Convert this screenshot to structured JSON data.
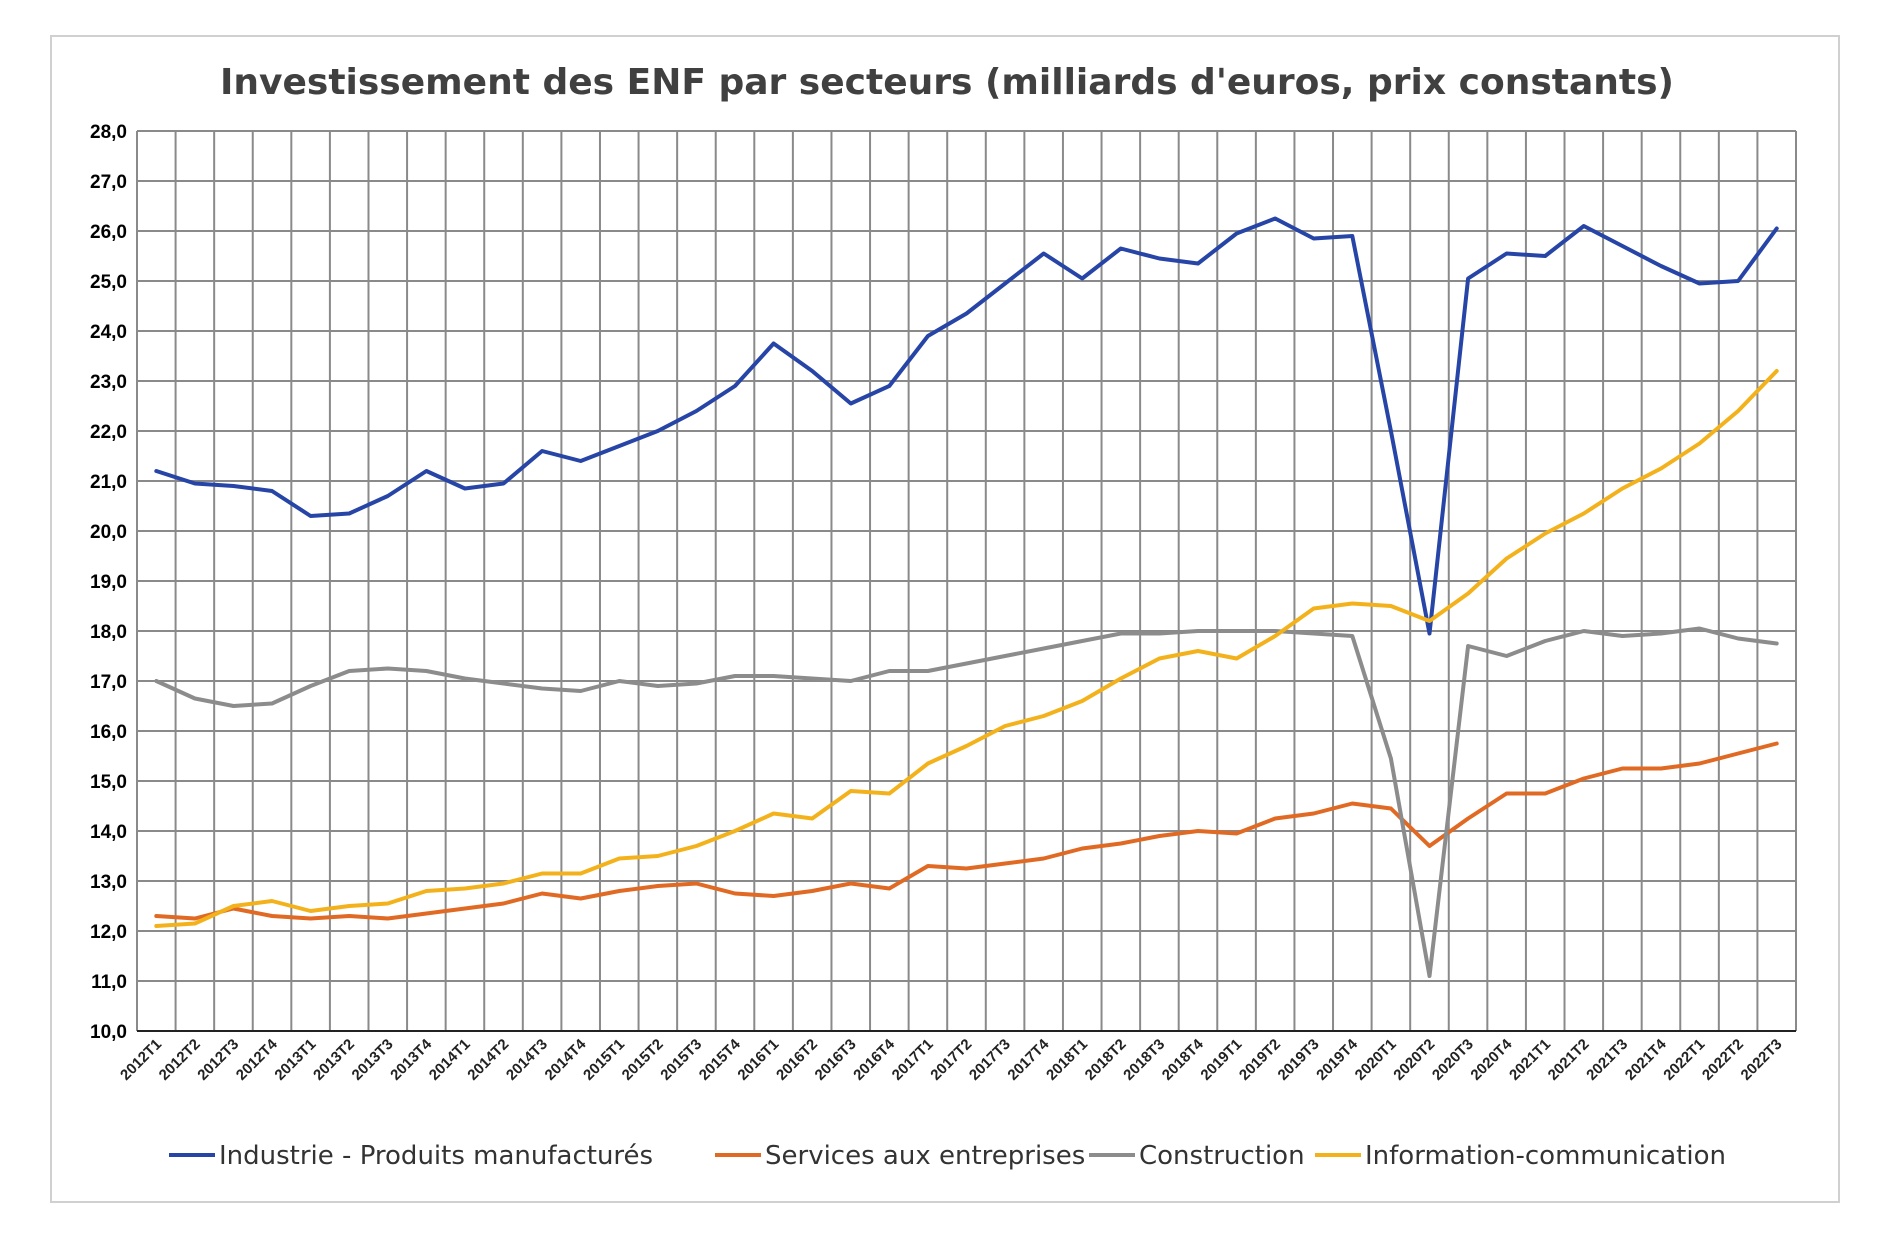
{
  "chart_data": {
    "type": "line",
    "title": "Investissement des ENF par secteurs (milliards d'euros, prix constants)",
    "xlabel": "",
    "ylabel": "",
    "ylim": [
      10,
      28
    ],
    "grid": true,
    "legend_position": "bottom",
    "y_ticks": [
      "10,0",
      "11,0",
      "12,0",
      "13,0",
      "14,0",
      "15,0",
      "16,0",
      "17,0",
      "18,0",
      "19,0",
      "20,0",
      "21,0",
      "22,0",
      "23,0",
      "24,0",
      "25,0",
      "26,0",
      "27,0",
      "28,0"
    ],
    "categories": [
      "2012T1",
      "2012T2",
      "2012T3",
      "2012T4",
      "2013T1",
      "2013T2",
      "2013T3",
      "2013T4",
      "2014T1",
      "2014T2",
      "2014T3",
      "2014T4",
      "2015T1",
      "2015T2",
      "2015T3",
      "2015T4",
      "2016T1",
      "2016T2",
      "2016T3",
      "2016T4",
      "2017T1",
      "2017T2",
      "2017T3",
      "2017T4",
      "2018T1",
      "2018T2",
      "2018T3",
      "2018T4",
      "2019T1",
      "2019T2",
      "2019T3",
      "2019T4",
      "2020T1",
      "2020T2",
      "2020T3",
      "2020T4",
      "2021T1",
      "2021T2",
      "2021T3",
      "2021T4",
      "2022T1",
      "2022T2",
      "2022T3"
    ],
    "series": [
      {
        "name": "Industrie - Produits manufacturés",
        "color": "#2645a6",
        "values": [
          21.2,
          20.95,
          20.9,
          20.8,
          20.3,
          20.35,
          20.7,
          21.2,
          20.85,
          20.95,
          21.6,
          21.4,
          21.7,
          22.0,
          22.4,
          22.9,
          23.75,
          23.2,
          22.55,
          22.9,
          23.9,
          24.35,
          24.95,
          25.55,
          25.05,
          25.65,
          25.45,
          25.35,
          25.95,
          26.25,
          25.85,
          25.9,
          22.0,
          17.95,
          25.05,
          25.55,
          25.5,
          26.1,
          25.7,
          25.3,
          24.95,
          25.0,
          26.05
        ]
      },
      {
        "name": "Services aux entreprises",
        "color": "#e06a24",
        "values": [
          12.3,
          12.25,
          12.45,
          12.3,
          12.25,
          12.3,
          12.25,
          12.35,
          12.45,
          12.55,
          12.75,
          12.65,
          12.8,
          12.9,
          12.95,
          12.75,
          12.7,
          12.8,
          12.95,
          12.85,
          13.3,
          13.25,
          13.35,
          13.45,
          13.65,
          13.75,
          13.9,
          14.0,
          13.95,
          14.25,
          14.35,
          14.55,
          14.45,
          13.7,
          14.25,
          14.75,
          14.75,
          15.05,
          15.25,
          15.25,
          15.35,
          15.55,
          15.75
        ]
      },
      {
        "name": "Construction",
        "color": "#8c8c8c",
        "values": [
          17.0,
          16.65,
          16.5,
          16.55,
          16.9,
          17.2,
          17.25,
          17.2,
          17.05,
          16.95,
          16.85,
          16.8,
          17.0,
          16.9,
          16.95,
          17.1,
          17.1,
          17.05,
          17.0,
          17.2,
          17.2,
          17.35,
          17.5,
          17.65,
          17.8,
          17.95,
          17.95,
          18.0,
          18.0,
          18.0,
          17.95,
          17.9,
          15.45,
          11.1,
          17.7,
          17.5,
          17.8,
          18.0,
          17.9,
          17.95,
          18.05,
          17.85,
          17.75
        ]
      },
      {
        "name": "Information-communication",
        "color": "#f3b21c",
        "values": [
          12.1,
          12.15,
          12.5,
          12.6,
          12.4,
          12.5,
          12.55,
          12.8,
          12.85,
          12.95,
          13.15,
          13.15,
          13.45,
          13.5,
          13.7,
          14.0,
          14.35,
          14.25,
          14.8,
          14.75,
          15.35,
          15.7,
          16.1,
          16.3,
          16.6,
          17.05,
          17.45,
          17.6,
          17.45,
          17.9,
          18.45,
          18.55,
          18.5,
          18.2,
          18.75,
          19.45,
          19.95,
          20.35,
          20.85,
          21.25,
          21.75,
          22.4,
          23.2
        ]
      }
    ]
  }
}
